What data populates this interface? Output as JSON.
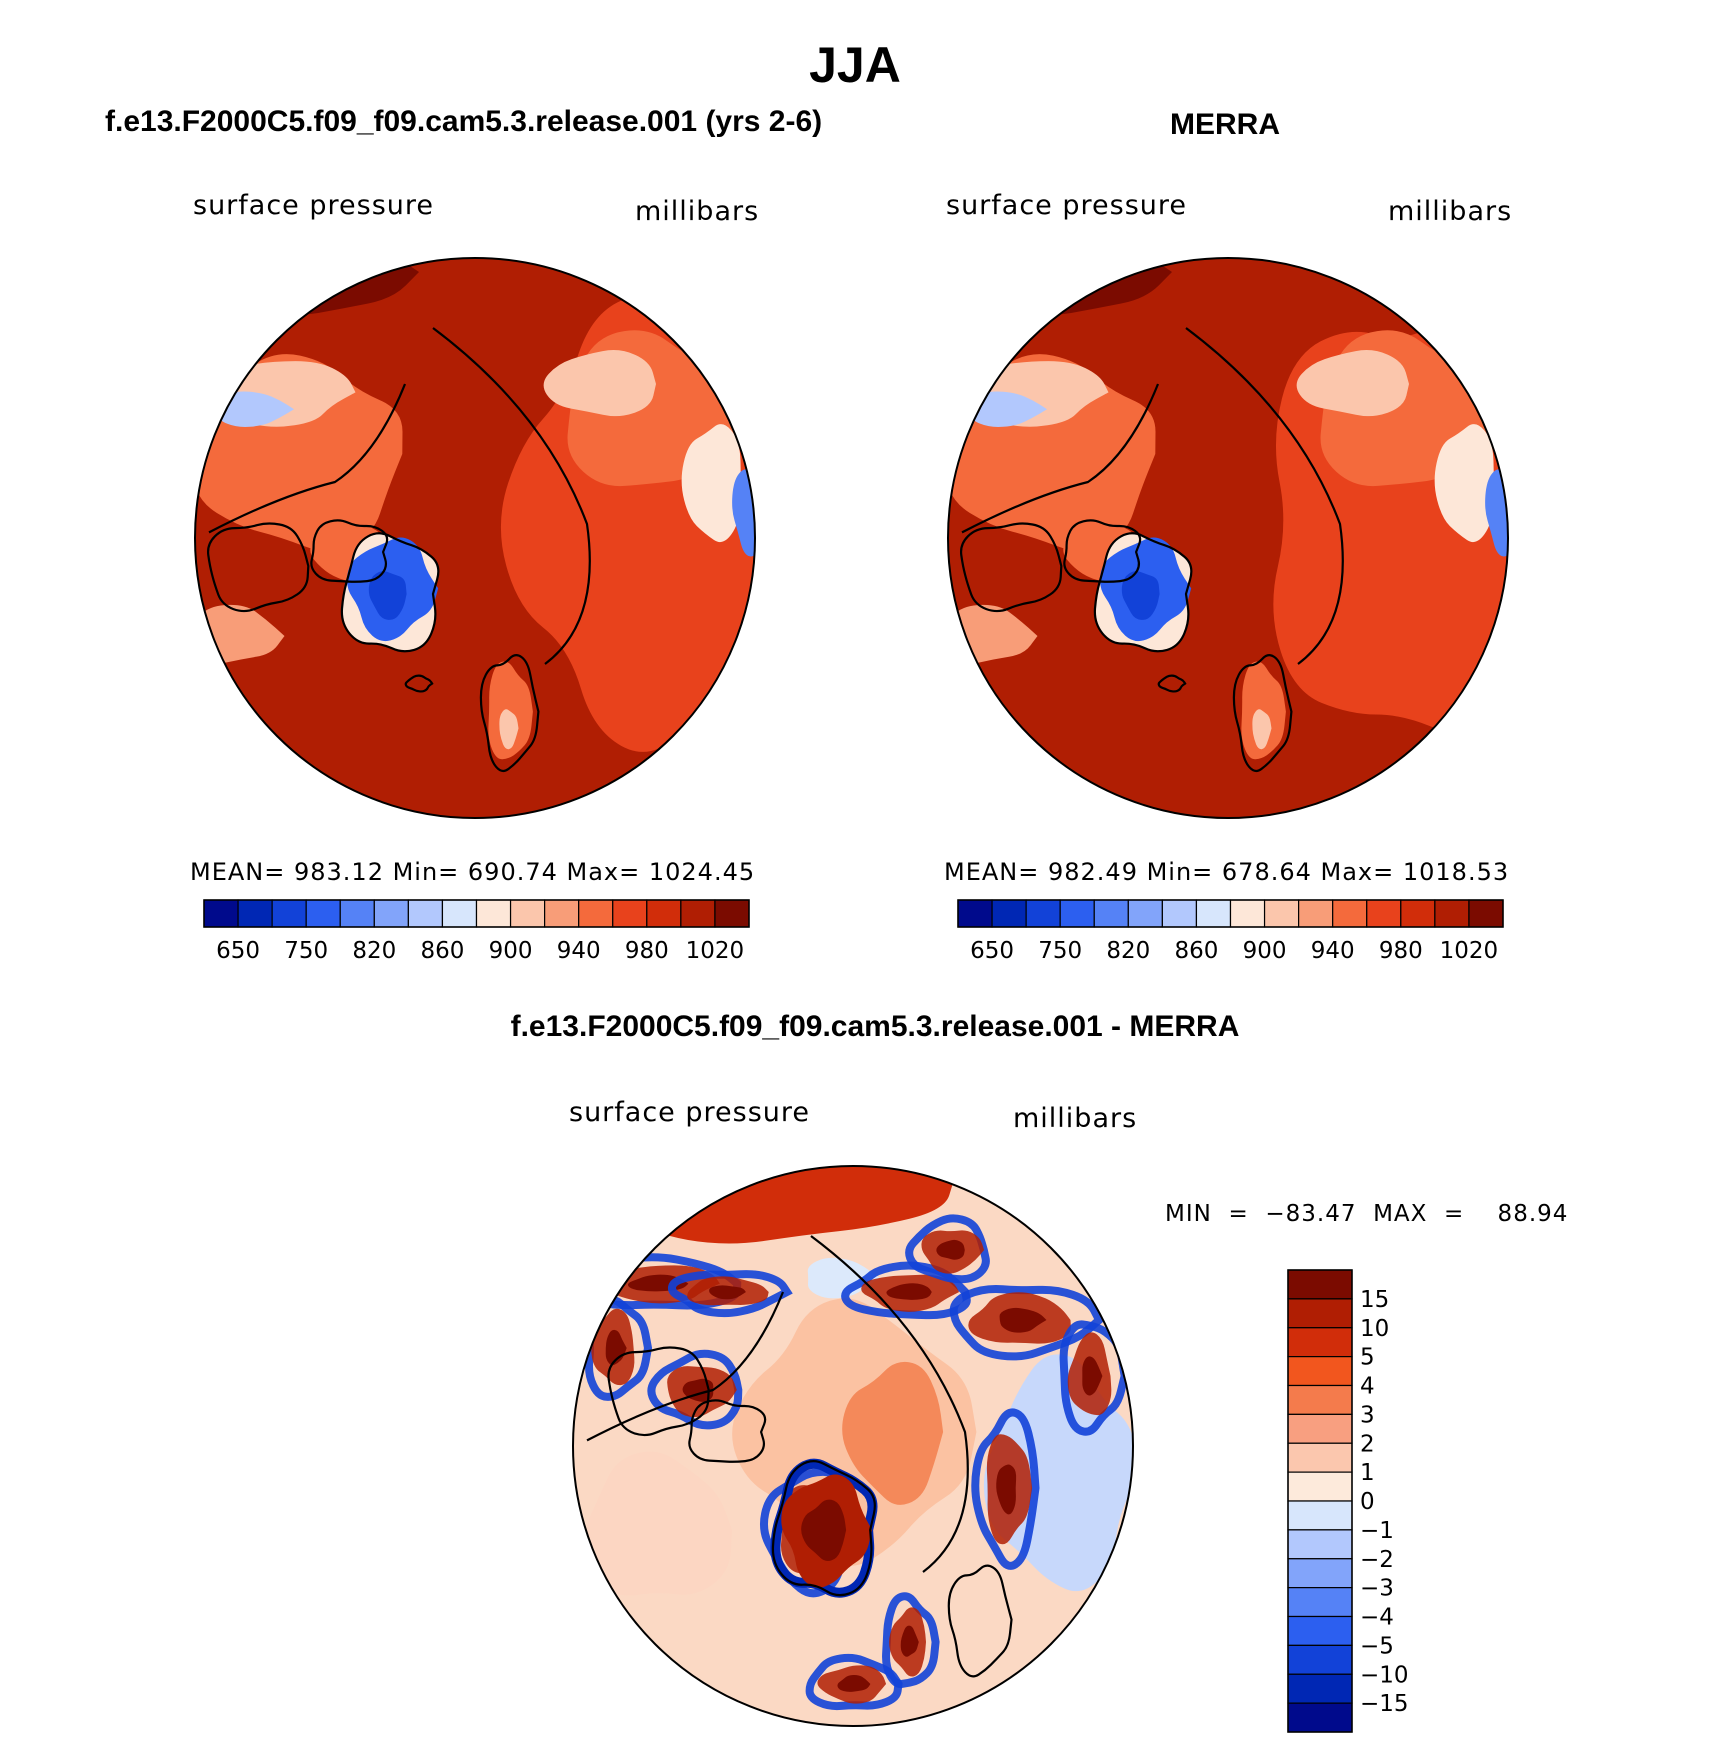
{
  "title": "JJA",
  "panels": [
    {
      "id": "model",
      "title": "f.e13.F2000C5.f09_f09.cam5.3.release.001 (yrs 2-6)",
      "left_label": "surface pressure",
      "right_label": "millibars",
      "stats": "MEAN=  983.12   Min=  690.74   Max=  1024.45"
    },
    {
      "id": "merra",
      "title": "MERRA",
      "left_label": "surface pressure",
      "right_label": "millibars",
      "stats": "MEAN=  982.49   Min=  678.64   Max=  1018.53"
    },
    {
      "id": "difference",
      "title": "f.e13.F2000C5.f09_f09.cam5.3.release.001 - MERRA",
      "left_label": "surface pressure",
      "right_label": "millibars",
      "stats": "MIN  =  −83.47  MAX  =    88.94"
    }
  ],
  "chart_data": [
    {
      "type": "heatmap",
      "title": "f.e13.F2000C5.f09_f09.cam5.3.release.001 (yrs 2-6)",
      "projection": "north polar stereographic",
      "variable": "surface pressure",
      "units": "millibars",
      "mean": 983.12,
      "min": 690.74,
      "max": 1024.45,
      "colorbar_orientation": "horizontal",
      "colorbar_labels": [
        "650",
        "750",
        "820",
        "860",
        "900",
        "940",
        "980",
        "1020"
      ],
      "colors": [
        "#000a8c",
        "#0027b4",
        "#1242d8",
        "#2c5ff0",
        "#5582f6",
        "#82a4fa",
        "#b2c8fd",
        "#d7e6fc",
        "#fde7d8",
        "#fbc6ac",
        "#f89d78",
        "#f46a3c",
        "#e8421c",
        "#d12d0a",
        "#b01e03",
        "#7b0b00"
      ]
    },
    {
      "type": "heatmap",
      "title": "MERRA",
      "projection": "north polar stereographic",
      "variable": "surface pressure",
      "units": "millibars",
      "mean": 982.49,
      "min": 678.64,
      "max": 1018.53,
      "colorbar_orientation": "horizontal",
      "colorbar_labels": [
        "650",
        "750",
        "820",
        "860",
        "900",
        "940",
        "980",
        "1020"
      ],
      "colors": [
        "#000a8c",
        "#0027b4",
        "#1242d8",
        "#2c5ff0",
        "#5582f6",
        "#82a4fa",
        "#b2c8fd",
        "#d7e6fc",
        "#fde7d8",
        "#fbc6ac",
        "#f89d78",
        "#f46a3c",
        "#e8421c",
        "#d12d0a",
        "#b01e03",
        "#7b0b00"
      ]
    },
    {
      "type": "heatmap",
      "title": "f.e13.F2000C5.f09_f09.cam5.3.release.001 - MERRA",
      "projection": "north polar stereographic",
      "variable": "surface pressure",
      "units": "millibars",
      "min": -83.47,
      "max": 88.94,
      "colorbar_orientation": "vertical",
      "colorbar_labels": [
        "15",
        "10",
        "5",
        "4",
        "3",
        "2",
        "1",
        "0",
        "−1",
        "−2",
        "−3",
        "−4",
        "−5",
        "−10",
        "−15"
      ],
      "colors": [
        "#7b0b00",
        "#b01e03",
        "#d12d0a",
        "#f2561e",
        "#f47b4c",
        "#f89f80",
        "#fbc7ae",
        "#fdeadb",
        "#d7e6fc",
        "#b2c8fd",
        "#82a4fa",
        "#5582f6",
        "#2c5ff0",
        "#1242d8",
        "#0027b4",
        "#000a8c"
      ]
    }
  ]
}
